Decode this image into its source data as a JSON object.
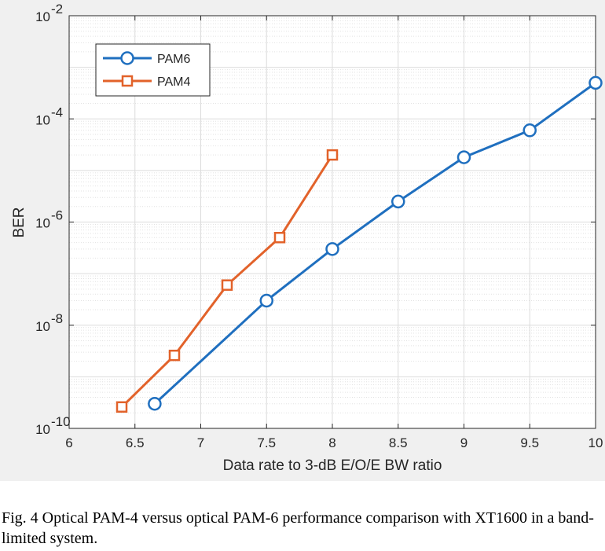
{
  "chart_data": {
    "type": "line",
    "title": "",
    "xlabel": "Data rate to 3-dB E/O/E BW ratio",
    "ylabel": "BER",
    "xlim": [
      6,
      10
    ],
    "ylim": [
      1e-10,
      0.01
    ],
    "yscale": "log",
    "grid": "on",
    "legend_position": "top-left",
    "x_ticks": [
      6,
      6.5,
      7,
      7.5,
      8,
      8.5,
      9,
      9.5,
      10
    ],
    "x_tick_labels": [
      "6",
      "6.5",
      "7",
      "7.5",
      "8",
      "8.5",
      "9",
      "9.5",
      "10"
    ],
    "y_tick_exponents": [
      -10,
      -8,
      -6,
      -4,
      -2
    ],
    "y_tick_base": "10",
    "series": [
      {
        "name": "PAM6",
        "color": "#1f6fbf",
        "marker": "circle",
        "x": [
          6.65,
          7.5,
          8,
          8.5,
          9,
          9.5,
          10
        ],
        "y": [
          3e-10,
          3e-08,
          3e-07,
          2.5e-06,
          1.8e-05,
          6e-05,
          0.0005
        ]
      },
      {
        "name": "PAM4",
        "color": "#e2622a",
        "marker": "square",
        "x": [
          6.4,
          6.8,
          7.2,
          7.6,
          8
        ],
        "y": [
          2.6e-10,
          2.6e-09,
          6e-08,
          5e-07,
          2e-05
        ]
      }
    ]
  },
  "caption": "Fig. 4 Optical PAM-4 versus optical PAM-6 performance comparison with XT1600 in a band-limited system."
}
